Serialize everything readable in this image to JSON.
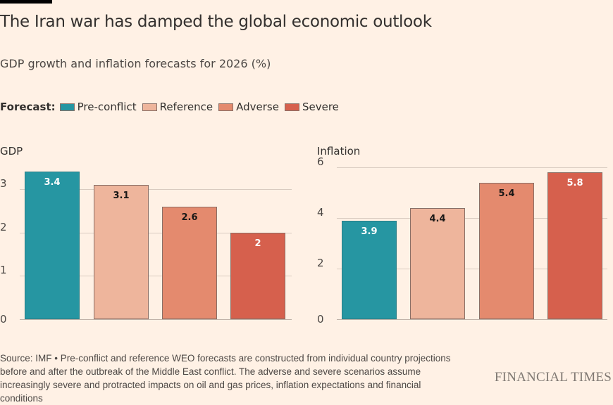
{
  "title": "The Iran war has damped the global economic outlook",
  "subtitle": "GDP growth and inflation forecasts for 2026 (%)",
  "legend": {
    "title": "Forecast:",
    "items": [
      {
        "label": "Pre-conflict",
        "color": "#2696a2"
      },
      {
        "label": "Reference",
        "color": "#eeb59c"
      },
      {
        "label": "Adverse",
        "color": "#e48a6e"
      },
      {
        "label": "Severe",
        "color": "#d6604d"
      }
    ]
  },
  "chart_data": [
    {
      "type": "bar",
      "title": "GDP",
      "categories": [
        "Pre-conflict",
        "Reference",
        "Adverse",
        "Severe"
      ],
      "values": [
        3.4,
        3.1,
        2.6,
        2
      ],
      "value_labels": [
        "3.4",
        "3.1",
        "2.6",
        "2"
      ],
      "ylim": [
        0,
        3.4
      ],
      "yticks": [
        "0",
        "1",
        "2",
        "3"
      ],
      "grid": true
    },
    {
      "type": "bar",
      "title": "Inflation",
      "categories": [
        "Pre-conflict",
        "Reference",
        "Adverse",
        "Severe"
      ],
      "values": [
        3.9,
        4.4,
        5.4,
        5.8
      ],
      "value_labels": [
        "3.9",
        "4.4",
        "5.4",
        "5.8"
      ],
      "ylim": [
        0,
        6
      ],
      "yticks": [
        "0",
        "2",
        "4",
        "6"
      ],
      "grid": true
    }
  ],
  "label_colors": [
    "#ffffff",
    "#1a1817",
    "#1a1817",
    "#ffffff"
  ],
  "source": "Source: IMF • Pre-conflict and reference WEO forecasts are constructed from individual country projections before and after the outbreak of the Middle East conflict. The adverse and severe scenarios assume increasingly severe and protracted impacts on oil and gas prices, inflation expectations and financial conditions",
  "logo": "FINANCIAL TIMES"
}
